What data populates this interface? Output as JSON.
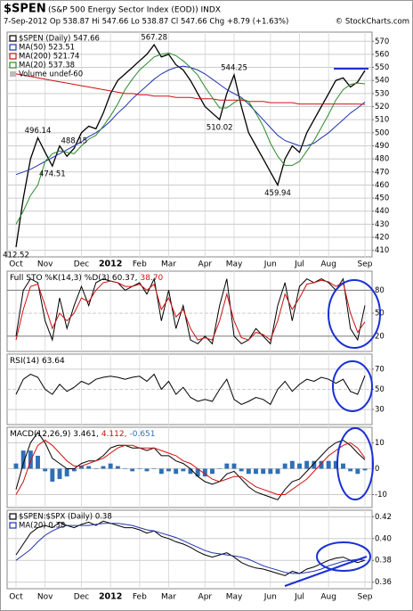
{
  "chart_data": {
    "type": "stock",
    "symbol": "$SPEN",
    "title": "(S&P 500 Energy Sector Index (EOD)) INDX",
    "subtitle": "7-Sep-2012   Op 538.87   Hi 547.66   Lo 538.87   Cl 547.66   Chg +8.79 (+1.63%)",
    "credit": "© StockCharts.com",
    "grid": true,
    "categories": [
      "Oct",
      null,
      null,
      null,
      "Nov",
      null,
      null,
      null,
      null,
      "Dec",
      null,
      null,
      null,
      "2012",
      null,
      null,
      null,
      "Feb",
      null,
      null,
      null,
      "Mar",
      null,
      null,
      null,
      null,
      "Apr",
      null,
      null,
      null,
      "May",
      null,
      null,
      null,
      null,
      "Jun",
      null,
      null,
      null,
      "Jul",
      null,
      null,
      null,
      "Aug",
      null,
      null,
      null,
      null,
      "Sep"
    ],
    "panels": [
      {
        "type": "line",
        "ylim": [
          405,
          577
        ],
        "yticks": [
          410,
          420,
          430,
          440,
          450,
          460,
          470,
          480,
          490,
          500,
          510,
          520,
          530,
          540,
          550,
          560,
          570
        ],
        "legend_extra": "Volume undef-60",
        "annotations": [
          "412.52",
          "496.14",
          "474.51",
          "488.15",
          "567.28",
          "544.25",
          "510.02",
          "459.94"
        ],
        "series": [
          {
            "name": "$SPEN (Daily) 547.66",
            "color": "#000000",
            "kind": "line",
            "values": [
              412.52,
              450,
              480,
              496.14,
              485,
              474.51,
              490,
              482,
              488.15,
              500,
              505,
              503,
              515,
              530,
              540,
              545,
              550,
              555,
              560,
              567.28,
              558,
              560,
              552,
              548,
              540,
              530,
              520,
              515,
              510.02,
              530,
              544.25,
              520,
              500,
              490,
              480,
              470,
              459.94,
              480,
              490,
              485,
              500,
              510,
              520,
              530,
              540,
              542,
              535,
              538.87,
              547.66
            ]
          },
          {
            "name": "MA(50) 523.51",
            "color": "#2233b0",
            "kind": "line",
            "values": [
              468,
              470,
              472,
              475,
              478,
              481,
              484,
              487,
              490,
              493,
              497,
              500,
              504,
              509,
              515,
              520,
              526,
              531,
              536,
              541,
              545,
              548,
              550,
              551,
              550,
              548,
              545,
              541,
              537,
              533,
              530,
              527,
              522,
              516,
              510,
              504,
              498,
              494,
              492,
              490,
              490,
              492,
              496,
              500,
              505,
              510,
              515,
              519,
              523.51
            ]
          },
          {
            "name": "MA(200) 521.74",
            "color": "#d01010",
            "kind": "line",
            "values": [
              545,
              544,
              543,
              542,
              541,
              540,
              539,
              538,
              537,
              536,
              535,
              534,
              533,
              532,
              531,
              530,
              530,
              529,
              529,
              528,
              528,
              528,
              527,
              527,
              527,
              526,
              526,
              526,
              525,
              525,
              525,
              525,
              524,
              524,
              524,
              523,
              523,
              523,
              523,
              522,
              522,
              522,
              522,
              522,
              522,
              522,
              522,
              522,
              521.74
            ]
          },
          {
            "name": "MA(20) 537.38",
            "color": "#2a8a2a",
            "kind": "line",
            "values": [
              430,
              440,
              452,
              460,
              478,
              484,
              486,
              485,
              484,
              490,
              495,
              498,
              505,
              513,
              522,
              533,
              541,
              548,
              553,
              558,
              560,
              561,
              559,
              555,
              550,
              544,
              535,
              527,
              519,
              519,
              523,
              526,
              524,
              515,
              505,
              492,
              482,
              475,
              475,
              478,
              486,
              494,
              504,
              514,
              525,
              533,
              537,
              538,
              537.38
            ]
          }
        ]
      },
      {
        "type": "line",
        "ylim": [
          0,
          105
        ],
        "yticks": [
          20,
          50,
          80
        ],
        "legend_inline": true,
        "series": [
          {
            "name": "Full STO %K(14,3) %D(3) 60.37,",
            "color": "#000000",
            "kind": "line",
            "values": [
              20,
              80,
              95,
              90,
              40,
              15,
              70,
              30,
              60,
              85,
              60,
              90,
              95,
              92,
              90,
              80,
              85,
              90,
              75,
              95,
              40,
              80,
              30,
              60,
              15,
              10,
              20,
              10,
              60,
              95,
              20,
              10,
              15,
              30,
              20,
              10,
              60,
              90,
              40,
              85,
              95,
              90,
              95,
              90,
              80,
              95,
              30,
              15,
              60.37
            ]
          },
          {
            "name": "38.70",
            "color": "#d01010",
            "kind": "line",
            "values": [
              15,
              55,
              85,
              88,
              60,
              30,
              50,
              40,
              50,
              70,
              65,
              80,
              90,
              92,
              90,
              85,
              85,
              88,
              80,
              88,
              55,
              70,
              45,
              55,
              30,
              15,
              18,
              15,
              40,
              75,
              40,
              18,
              15,
              25,
              22,
              15,
              40,
              75,
              55,
              70,
              88,
              90,
              93,
              91,
              85,
              90,
              50,
              25,
              38.7
            ]
          }
        ]
      },
      {
        "type": "line",
        "ylim": [
          15,
          85
        ],
        "yticks": [
          30,
          50,
          70
        ],
        "legend_inline": true,
        "series": [
          {
            "name": "RSI(14) 63.64",
            "color": "#000000",
            "kind": "line",
            "values": [
              45,
              60,
              65,
              62,
              50,
              45,
              55,
              48,
              52,
              58,
              55,
              60,
              62,
              63,
              62,
              60,
              62,
              63,
              58,
              65,
              50,
              58,
              45,
              52,
              42,
              38,
              40,
              38,
              50,
              60,
              40,
              35,
              38,
              42,
              40,
              35,
              50,
              58,
              48,
              55,
              60,
              58,
              62,
              60,
              56,
              60,
              48,
              45,
              63.64
            ]
          }
        ]
      },
      {
        "type": "line",
        "ylim": [
          -15,
          16
        ],
        "yticks": [
          -10,
          0,
          10
        ],
        "legend_inline": true,
        "series": [
          {
            "name": "MACD(12,26,9) 3.461,",
            "color": "#000000",
            "kind": "line",
            "values": [
              -8,
              2,
              10,
              14,
              10,
              4,
              2,
              0,
              0,
              2,
              3,
              3,
              5,
              8,
              9,
              9,
              8,
              8,
              7,
              8,
              5,
              5,
              3,
              2,
              0,
              -3,
              -5,
              -6,
              -5,
              -2,
              -1,
              -4,
              -7,
              -9,
              -10,
              -11,
              -12,
              -8,
              -5,
              -4,
              -1,
              2,
              5,
              8,
              10,
              11,
              9,
              6,
              3.461
            ]
          },
          {
            "name": "4.112,",
            "color": "#d01010",
            "kind": "line",
            "values": [
              -10,
              -5,
              3,
              9,
              11,
              9,
              6,
              3,
              1,
              1,
              2,
              3,
              4,
              6,
              8,
              9,
              9,
              8,
              8,
              8,
              7,
              6,
              5,
              3,
              2,
              0,
              -2,
              -4,
              -5,
              -4,
              -3,
              -3,
              -5,
              -7,
              -8,
              -9,
              -10,
              -10,
              -8,
              -6,
              -4,
              -1,
              2,
              5,
              7,
              9,
              10,
              8,
              4.112
            ]
          },
          {
            "name": "-0.651",
            "color": "#2f6fb5",
            "kind": "bar",
            "values": [
              2,
              7,
              7,
              5,
              -1,
              -5,
              -4,
              -3,
              -1,
              1,
              1,
              0,
              1,
              2,
              1,
              0,
              -1,
              0,
              -1,
              0,
              -2,
              -1,
              -2,
              -1,
              -2,
              -3,
              -3,
              -2,
              0,
              2,
              2,
              -1,
              -2,
              -2,
              -2,
              -2,
              -2,
              2,
              3,
              2,
              3,
              3,
              3,
              3,
              3,
              2,
              -1,
              -2,
              -0.651
            ]
          }
        ]
      },
      {
        "type": "line",
        "ylim": [
          0.354,
          0.426
        ],
        "yticks": [
          0.36,
          {
            "value": 0.38,
            "label": "0.38"
          },
          {
            "value": 0.4,
            "label": "0.40"
          },
          0.42
        ],
        "series": [
          {
            "name": "$SPEN:$SPX (Daily) 0.38",
            "color": "#000000",
            "kind": "line",
            "values": [
              0.385,
              0.395,
              0.405,
              0.41,
              0.412,
              0.41,
              0.415,
              0.412,
              0.41,
              0.413,
              0.415,
              0.412,
              0.416,
              0.414,
              0.412,
              0.41,
              0.41,
              0.408,
              0.405,
              0.407,
              0.402,
              0.4,
              0.397,
              0.395,
              0.392,
              0.388,
              0.385,
              0.383,
              0.385,
              0.387,
              0.383,
              0.378,
              0.375,
              0.373,
              0.372,
              0.37,
              0.368,
              0.366,
              0.37,
              0.368,
              0.372,
              0.374,
              0.377,
              0.38,
              0.382,
              0.383,
              0.38,
              0.378,
              0.38
            ]
          },
          {
            "name": "MA(20) 0.38",
            "color": "#2233b0",
            "kind": "line",
            "values": [
              0.38,
              0.385,
              0.39,
              0.397,
              0.403,
              0.407,
              0.41,
              0.412,
              0.412,
              0.412,
              0.412,
              0.413,
              0.414,
              0.414,
              0.414,
              0.413,
              0.412,
              0.41,
              0.408,
              0.407,
              0.405,
              0.403,
              0.401,
              0.398,
              0.395,
              0.392,
              0.389,
              0.387,
              0.386,
              0.385,
              0.384,
              0.383,
              0.381,
              0.378,
              0.375,
              0.373,
              0.371,
              0.369,
              0.368,
              0.368,
              0.369,
              0.37,
              0.372,
              0.375,
              0.377,
              0.379,
              0.38,
              0.381,
              0.38
            ]
          }
        ]
      }
    ]
  }
}
